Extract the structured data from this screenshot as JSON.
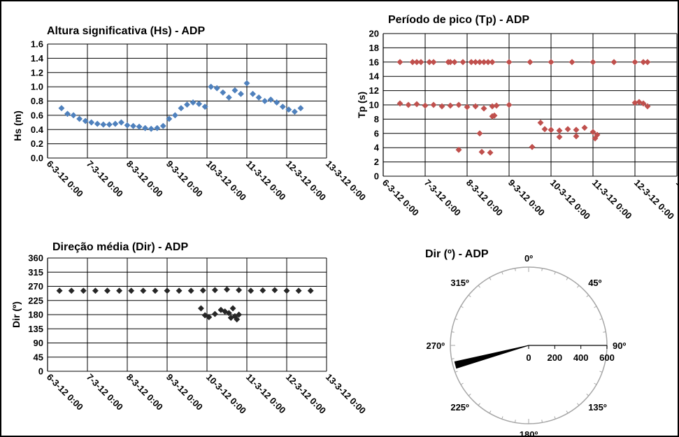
{
  "chart_data": [
    {
      "id": "hs",
      "type": "scatter",
      "title": "Altura significativa (Hs) - ADP",
      "ylabel": "Hs (m)",
      "xlabel": "",
      "ylim": [
        0,
        1.6
      ],
      "yticks": [
        "0.0",
        "0.2",
        "0.4",
        "0.6",
        "0.8",
        "1.0",
        "1.2",
        "1.4",
        "1.6"
      ],
      "xticks": [
        "6-3-12 0:00",
        "7-3-12 0:00",
        "8-3-12 0:00",
        "9-3-12 0:00",
        "10-3-12 0:00",
        "11-3-12 0:00",
        "12-3-12 0:00",
        "13-3-12 0:00"
      ],
      "xlim_days": [
        6,
        13
      ],
      "grid": true,
      "color": "#4F81BD",
      "series": [
        {
          "x": [
            6.35,
            6.5,
            6.65,
            6.8,
            6.95,
            7.1,
            7.25,
            7.4,
            7.55,
            7.7,
            7.85,
            8.0,
            8.15,
            8.3,
            8.45,
            8.6,
            8.75,
            8.9,
            9.05,
            9.2,
            9.35,
            9.5,
            9.65,
            9.8,
            9.95,
            10.1,
            10.25,
            10.4,
            10.55,
            10.7,
            10.85,
            11.0,
            11.15,
            11.3,
            11.45,
            11.6,
            11.75,
            11.9,
            12.05,
            12.2,
            12.35
          ],
          "y": [
            0.7,
            0.62,
            0.6,
            0.55,
            0.52,
            0.5,
            0.48,
            0.47,
            0.47,
            0.48,
            0.5,
            0.46,
            0.45,
            0.44,
            0.42,
            0.41,
            0.42,
            0.45,
            0.55,
            0.6,
            0.7,
            0.75,
            0.78,
            0.76,
            0.72,
            1.0,
            0.98,
            0.92,
            0.85,
            0.95,
            0.9,
            1.05,
            0.9,
            0.85,
            0.8,
            0.82,
            0.78,
            0.72,
            0.68,
            0.65,
            0.7
          ]
        }
      ]
    },
    {
      "id": "tp",
      "type": "scatter",
      "title": "Período de pico (Tp) - ADP",
      "ylabel": "Tp (s)",
      "xlabel": "",
      "ylim": [
        0,
        20
      ],
      "yticks": [
        "0",
        "2",
        "4",
        "6",
        "8",
        "10",
        "12",
        "14",
        "16",
        "18",
        "20"
      ],
      "xticks": [
        "6-3-12 0:00",
        "7-3-12 0:00",
        "8-3-12 0:00",
        "9-3-12 0:00",
        "10-3-12 0:00",
        "11-3-12 0:00",
        "12-3-12 0:00",
        "13-3-12 0:00"
      ],
      "xlim_days": [
        6,
        13
      ],
      "grid": true,
      "color": "#C0504D",
      "series": [
        {
          "x": [
            6.4,
            6.7,
            6.8,
            6.9,
            7.1,
            7.2,
            7.55,
            7.6,
            7.7,
            7.9,
            8.1,
            8.2,
            8.3,
            8.4,
            8.5,
            8.6,
            9.0,
            9.5,
            10.0,
            10.5,
            11.0,
            11.5,
            12.0,
            12.2,
            12.3
          ],
          "y": [
            16,
            16,
            16,
            16,
            16,
            16,
            16,
            16,
            16,
            16,
            16,
            16,
            16,
            16,
            16,
            16,
            16,
            16,
            16,
            16,
            16,
            16,
            16,
            16,
            16
          ]
        },
        {
          "x": [
            6.4,
            6.6,
            6.8,
            7.0,
            7.2,
            7.4,
            7.6,
            7.8,
            8.0,
            8.2,
            8.4,
            8.6,
            8.65,
            8.7,
            9.0,
            9.75,
            9.85,
            10.0,
            10.2,
            10.4,
            10.6,
            10.8,
            11.0,
            11.1,
            12.0,
            12.1,
            12.2,
            12.3
          ],
          "y": [
            10.2,
            10,
            10.1,
            9.9,
            10,
            9.8,
            9.9,
            10,
            9.7,
            9.8,
            9.5,
            9.8,
            8.5,
            9.9,
            10,
            7.5,
            6.6,
            6.5,
            6.4,
            6.6,
            6.5,
            6.8,
            6.2,
            5.8,
            10.3,
            10.4,
            10.2,
            9.8
          ]
        },
        {
          "x": [
            7.8,
            8.3,
            8.35,
            8.55,
            8.6,
            9.55,
            10.2,
            10.6,
            11.05
          ],
          "y": [
            3.7,
            6,
            3.4,
            3.3,
            8.4,
            4.1,
            5.5,
            5.6,
            5.3
          ]
        }
      ]
    },
    {
      "id": "dir",
      "type": "scatter",
      "title": "Direção média (Dir) - ADP",
      "ylabel": "Dir (º)",
      "xlabel": "",
      "ylim": [
        0,
        360
      ],
      "yticks": [
        "0",
        "45",
        "90",
        "135",
        "180",
        "225",
        "270",
        "315",
        "360"
      ],
      "xticks": [
        "6-3-12 0:00",
        "7-3-12 0:00",
        "8-3-12 0:00",
        "9-3-12 0:00",
        "10-3-12 0:00",
        "11-3-12 0:00",
        "12-3-12 0:00",
        "13-3-12 0:00"
      ],
      "xlim_days": [
        6,
        13
      ],
      "grid": true,
      "color": "#262626",
      "series": [
        {
          "x": [
            6.3,
            6.6,
            6.9,
            7.2,
            7.5,
            7.8,
            8.1,
            8.4,
            8.7,
            9.0,
            9.3,
            9.6,
            9.9,
            10.2,
            10.5,
            10.8,
            11.1,
            11.4,
            11.7,
            12.0,
            12.3,
            12.6
          ],
          "y": [
            256,
            256,
            256,
            256,
            256,
            256,
            256,
            256,
            256,
            256,
            256,
            256,
            257,
            258,
            260,
            258,
            256,
            257,
            258,
            256,
            256,
            256
          ]
        },
        {
          "x": [
            9.85,
            9.95,
            10.05,
            10.2,
            10.35,
            10.45,
            10.55,
            10.6,
            10.7,
            10.8,
            10.65,
            10.75
          ],
          "y": [
            200,
            178,
            172,
            182,
            195,
            190,
            185,
            170,
            175,
            180,
            200,
            165
          ]
        }
      ]
    },
    {
      "id": "dir-polar",
      "type": "polar-bar",
      "title": "Dir (º) - ADP",
      "angle_labels": [
        "0º",
        "45º",
        "90º",
        "135º",
        "180º",
        "225º",
        "270º",
        "315º"
      ],
      "radial_ticks": [
        "0",
        "200",
        "400",
        "600"
      ],
      "radial_max": 600,
      "direction_deg": 255,
      "wedge_width_deg": 5,
      "value": 580
    }
  ]
}
